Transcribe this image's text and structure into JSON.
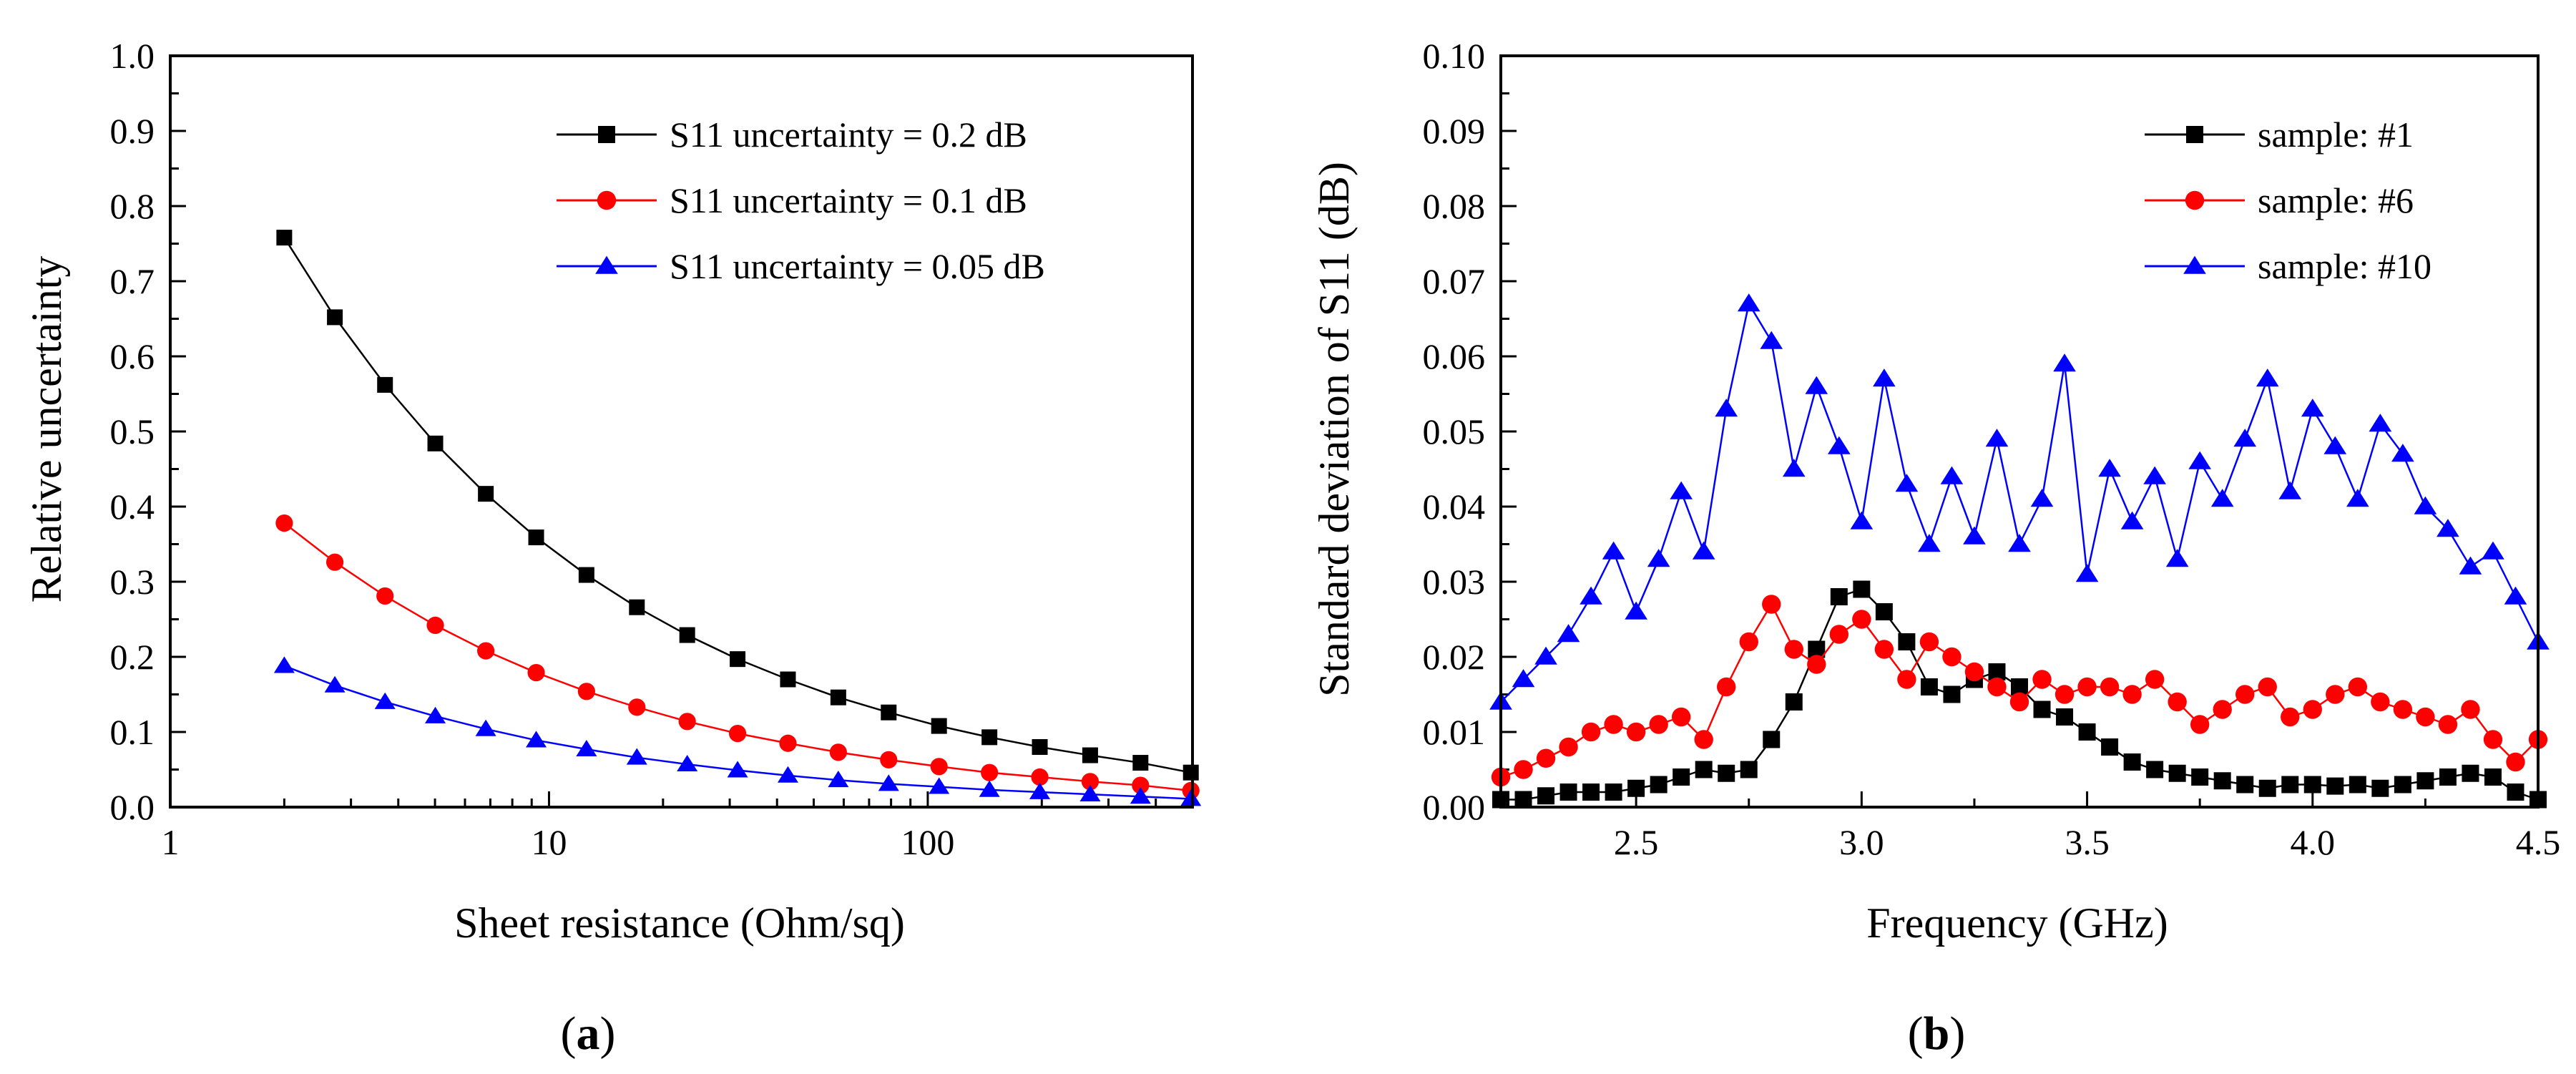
{
  "chart_data": [
    {
      "panel_label": "a",
      "type": "line",
      "xscale": "log",
      "xlabel": "Sheet resistance (Ohm/sq)",
      "ylabel": "Relative uncertainty",
      "xlim": [
        1,
        500
      ],
      "ylim": [
        0,
        1.0
      ],
      "x_ticks": [
        1,
        10,
        100
      ],
      "x_tick_labels": [
        "1",
        "10",
        "100"
      ],
      "y_ticks": [
        0,
        0.1,
        0.2,
        0.3,
        0.4,
        0.5,
        0.6,
        0.7,
        0.8,
        0.9,
        1.0
      ],
      "y_tick_labels": [
        "0.0",
        "0.1",
        "0.2",
        "0.3",
        "0.4",
        "0.5",
        "0.6",
        "0.7",
        "0.8",
        "0.9",
        "1.0"
      ],
      "legend_position": "top-right",
      "x": [
        2.0,
        2.72,
        3.69,
        5.01,
        6.81,
        9.25,
        12.56,
        17.06,
        23.17,
        31.47,
        42.74,
        58.05,
        78.85,
        107.1,
        145.5,
        197.6,
        268.4,
        364.5,
        495.1
      ],
      "series": [
        {
          "name": "S11 uncertainty = 0.2 dB",
          "color": "#000000",
          "marker": "square",
          "values": [
            0.758,
            0.652,
            0.562,
            0.484,
            0.417,
            0.359,
            0.309,
            0.266,
            0.229,
            0.197,
            0.17,
            0.146,
            0.126,
            0.108,
            0.093,
            0.08,
            0.069,
            0.059,
            0.046
          ]
        },
        {
          "name": "S11 uncertainty = 0.1 dB",
          "color": "#ff0000",
          "marker": "circle",
          "values": [
            0.378,
            0.326,
            0.281,
            0.242,
            0.208,
            0.179,
            0.154,
            0.133,
            0.114,
            0.098,
            0.085,
            0.073,
            0.063,
            0.054,
            0.046,
            0.04,
            0.034,
            0.029,
            0.022
          ]
        },
        {
          "name": "S11 uncertainty = 0.05 dB",
          "color": "#0000ff",
          "marker": "triangle",
          "values": [
            0.188,
            0.162,
            0.14,
            0.121,
            0.104,
            0.089,
            0.077,
            0.066,
            0.057,
            0.049,
            0.042,
            0.036,
            0.031,
            0.027,
            0.023,
            0.02,
            0.017,
            0.014,
            0.011
          ]
        }
      ]
    },
    {
      "panel_label": "b",
      "type": "line",
      "xlabel": "Frequency (GHz)",
      "ylabel": "Standard deviation of S11 (dB)",
      "xlim": [
        2.2,
        4.5
      ],
      "ylim": [
        0,
        0.1
      ],
      "x_ticks": [
        2.5,
        3.0,
        3.5,
        4.0,
        4.5
      ],
      "x_tick_labels": [
        "2.5",
        "3.0",
        "3.5",
        "4.0",
        "4.5"
      ],
      "y_ticks": [
        0,
        0.01,
        0.02,
        0.03,
        0.04,
        0.05,
        0.06,
        0.07,
        0.08,
        0.09,
        0.1
      ],
      "y_tick_labels": [
        "0.00",
        "0.01",
        "0.02",
        "0.03",
        "0.04",
        "0.05",
        "0.06",
        "0.07",
        "0.08",
        "0.09",
        "0.10"
      ],
      "legend_position": "top-right",
      "x": [
        2.2,
        2.25,
        2.3,
        2.35,
        2.4,
        2.45,
        2.5,
        2.55,
        2.6,
        2.65,
        2.7,
        2.75,
        2.8,
        2.85,
        2.9,
        2.95,
        3.0,
        3.05,
        3.1,
        3.15,
        3.2,
        3.25,
        3.3,
        3.35,
        3.4,
        3.45,
        3.5,
        3.55,
        3.6,
        3.65,
        3.7,
        3.75,
        3.8,
        3.85,
        3.9,
        3.95,
        4.0,
        4.05,
        4.1,
        4.15,
        4.2,
        4.25,
        4.3,
        4.35,
        4.4,
        4.45,
        4.5
      ],
      "series": [
        {
          "name": "sample: #1",
          "color": "#000000",
          "marker": "square",
          "values": [
            0.001,
            0.001,
            0.0015,
            0.002,
            0.002,
            0.002,
            0.0025,
            0.003,
            0.004,
            0.005,
            0.0045,
            0.005,
            0.009,
            0.014,
            0.021,
            0.028,
            0.029,
            0.026,
            0.022,
            0.016,
            0.015,
            0.017,
            0.018,
            0.016,
            0.013,
            0.012,
            0.01,
            0.008,
            0.006,
            0.005,
            0.0045,
            0.004,
            0.0035,
            0.003,
            0.0025,
            0.003,
            0.003,
            0.0028,
            0.003,
            0.0025,
            0.003,
            0.0035,
            0.004,
            0.0045,
            0.004,
            0.002,
            0.001
          ]
        },
        {
          "name": "sample: #6",
          "color": "#ff0000",
          "marker": "circle",
          "values": [
            0.004,
            0.005,
            0.0065,
            0.008,
            0.01,
            0.011,
            0.01,
            0.011,
            0.012,
            0.009,
            0.016,
            0.022,
            0.027,
            0.021,
            0.019,
            0.023,
            0.025,
            0.021,
            0.017,
            0.022,
            0.02,
            0.018,
            0.016,
            0.014,
            0.017,
            0.015,
            0.016,
            0.016,
            0.015,
            0.017,
            0.014,
            0.011,
            0.013,
            0.015,
            0.016,
            0.012,
            0.013,
            0.015,
            0.016,
            0.014,
            0.013,
            0.012,
            0.011,
            0.013,
            0.009,
            0.006,
            0.009
          ]
        },
        {
          "name": "sample: #10",
          "color": "#0000ff",
          "marker": "triangle",
          "values": [
            0.014,
            0.017,
            0.02,
            0.023,
            0.028,
            0.034,
            0.026,
            0.033,
            0.042,
            0.034,
            0.053,
            0.067,
            0.062,
            0.045,
            0.056,
            0.048,
            0.038,
            0.057,
            0.043,
            0.035,
            0.044,
            0.036,
            0.049,
            0.035,
            0.041,
            0.059,
            0.031,
            0.045,
            0.038,
            0.044,
            0.033,
            0.046,
            0.041,
            0.049,
            0.057,
            0.042,
            0.053,
            0.048,
            0.041,
            0.051,
            0.047,
            0.04,
            0.037,
            0.032,
            0.034,
            0.028,
            0.022
          ]
        }
      ]
    }
  ]
}
